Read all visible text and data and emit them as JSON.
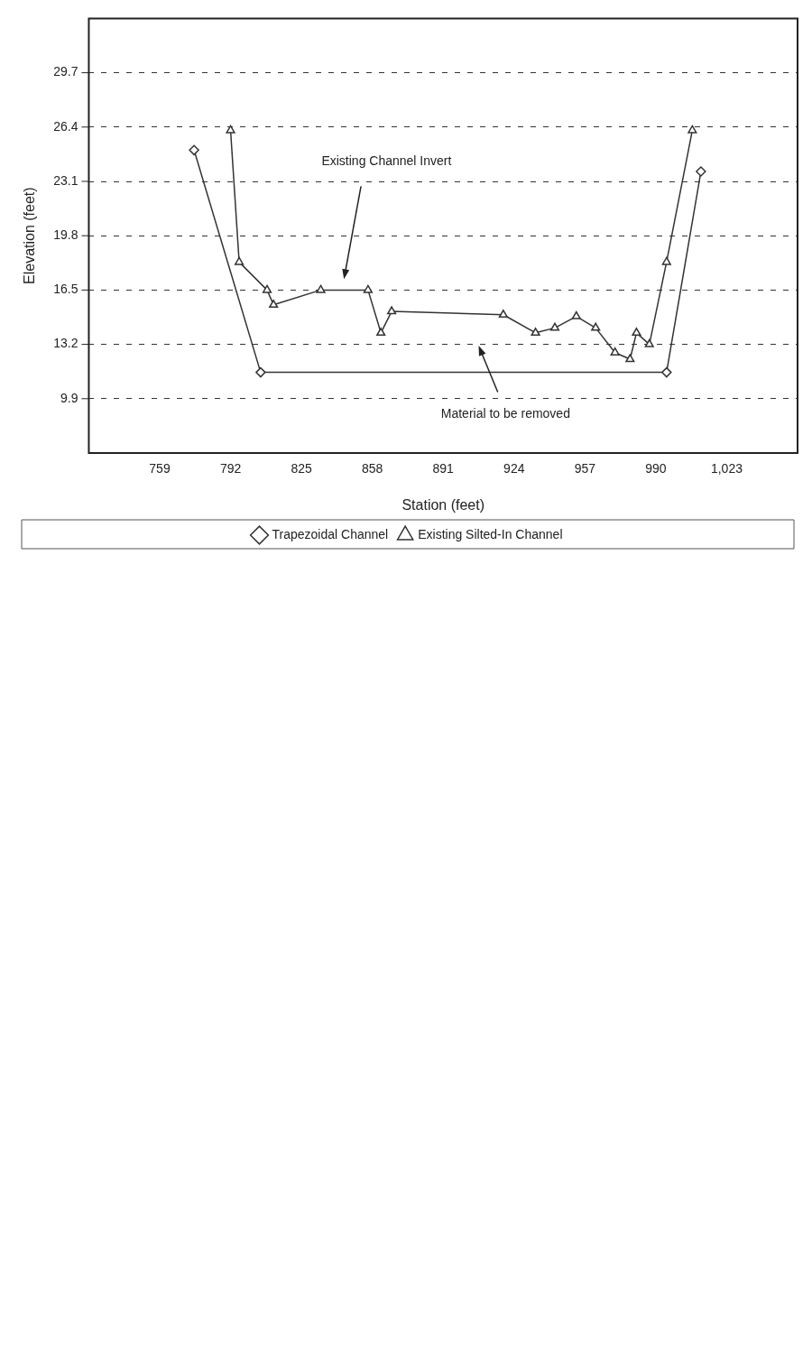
{
  "chart_data": {
    "type": "line",
    "xlabel": "Station (feet)",
    "ylabel": "Elevation (feet)",
    "xlim": [
      726,
      1056
    ],
    "xticks": [
      759,
      792,
      825,
      858,
      891,
      924,
      957,
      990,
      {
        "value": 1023,
        "label": "1,023"
      }
    ],
    "ylim": [
      6.6,
      33
    ],
    "yticks": [
      9.9,
      13.2,
      16.5,
      19.8,
      23.1,
      26.4,
      29.7
    ],
    "grid": "y",
    "legend": "bottom",
    "series": [
      {
        "name": "Trapezoidal Channel",
        "color": "#333333",
        "marker": "diamond",
        "x": [
          775,
          806,
          995,
          1011
        ],
        "values": [
          25.0,
          11.5,
          11.5,
          23.7
        ]
      },
      {
        "name": "Existing Silted-In Channel",
        "color": "#333333",
        "marker": "triangle",
        "x": [
          792,
          796,
          809,
          812,
          834,
          856,
          862,
          867,
          919,
          934,
          943,
          953,
          962,
          971,
          978,
          981,
          987,
          995,
          1007
        ],
        "values": [
          26.2,
          18.2,
          16.5,
          15.6,
          16.5,
          16.5,
          13.9,
          15.2,
          15.0,
          13.9,
          14.2,
          14.9,
          14.2,
          12.7,
          12.3,
          13.9,
          13.2,
          18.2,
          26.2
        ]
      }
    ],
    "annotations": [
      "Existing Channel Invert",
      "Material to be removed"
    ]
  }
}
